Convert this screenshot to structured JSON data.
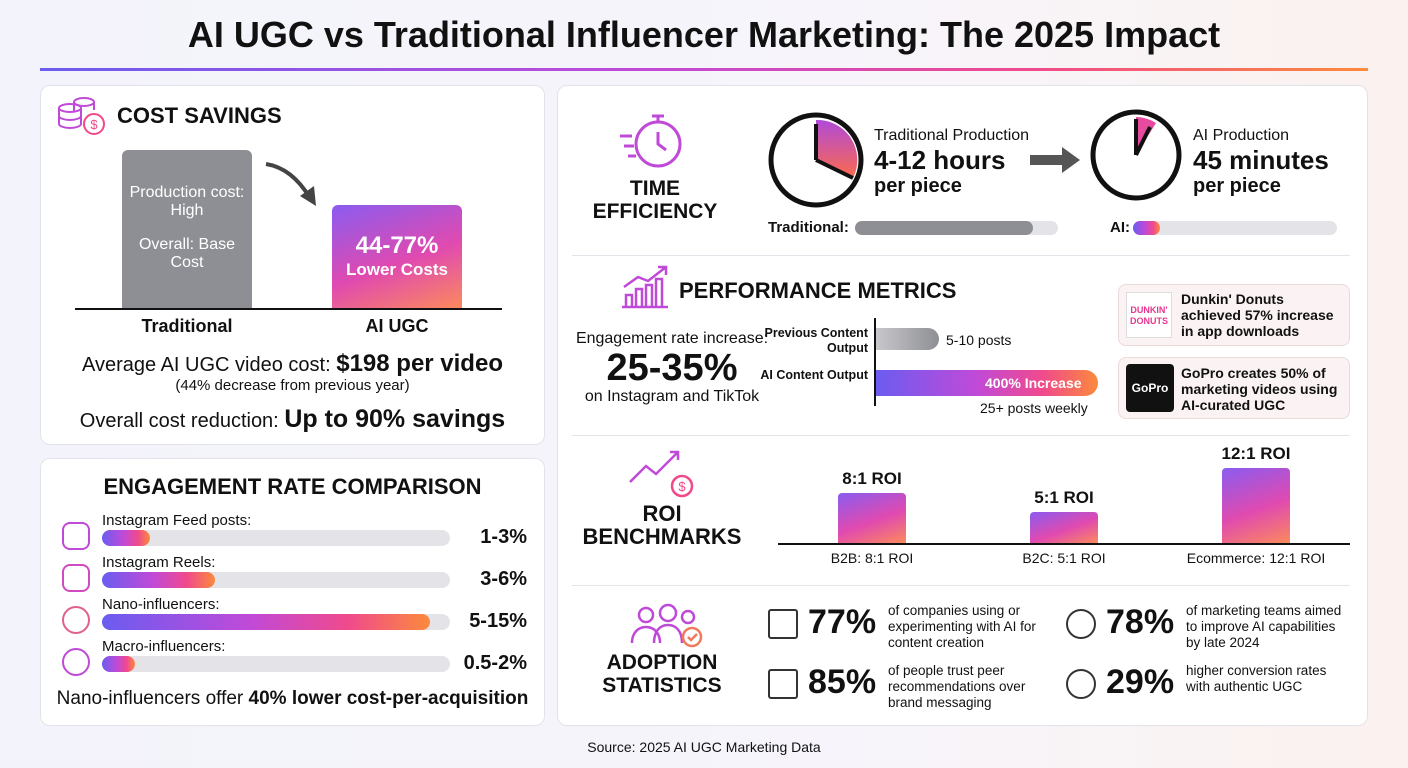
{
  "header": {
    "title": "AI UGC vs Traditional Influencer Marketing: The 2025 Impact"
  },
  "cost_savings": {
    "title": "COST SAVINGS",
    "traditional": {
      "lines": [
        "Production cost: High",
        "Overall: Base Cost"
      ],
      "label": "Traditional"
    },
    "ai": {
      "lines": [
        "44-77%",
        "Lower Costs"
      ],
      "label": "AI UGC"
    },
    "avg_cost": {
      "text": "Average AI UGC video cost:",
      "value": "$198 per video"
    },
    "avg_note": "(44% decrease from previous year)",
    "reduction": {
      "text": "Overall cost reduction:",
      "value": "Up to 90% savings"
    }
  },
  "engagement": {
    "title": "ENGAGEMENT RATE COMPARISON",
    "rows": [
      {
        "label": "Instagram Feed posts:",
        "value": "1-3%"
      },
      {
        "label": "Instagram Reels:",
        "value": "3-6%"
      },
      {
        "label": "Nano-influencers:",
        "value": "5-15%"
      },
      {
        "label": "Macro-influencers:",
        "value": "0.5-2%"
      }
    ],
    "note": {
      "text": "Nano-influencers offer",
      "value": "40% lower cost-per-acquisition"
    }
  },
  "time_efficiency": {
    "title": "TIME EFFICIENCY",
    "traditional": {
      "label": "Traditional Production",
      "value": "4-12 hours",
      "unit": "per piece",
      "bar_label": "Traditional:"
    },
    "ai": {
      "label": "AI Production",
      "value": "45 minutes",
      "unit": "per piece",
      "bar_label": "AI:"
    }
  },
  "performance": {
    "title": "PERFORMANCE METRICS",
    "engagement_label": "Engagement rate increase:",
    "engagement_value": "25-35%",
    "engagement_note": "on Instagram and TikTok",
    "bars": [
      {
        "label": "Previous Content Output",
        "value": "5-10 posts"
      },
      {
        "label": "AI Content Output",
        "value": "400% Increase",
        "note": "25+ posts weekly"
      }
    ],
    "cases": [
      {
        "brand": "DUNKIN' DONUTS",
        "text": "Dunkin' Donuts achieved 57% increase in app downloads"
      },
      {
        "brand": "GoPro",
        "text": "GoPro creates 50% of marketing videos using AI-curated UGC"
      }
    ]
  },
  "roi": {
    "title": "ROI BENCHMARKS",
    "bars": [
      {
        "category": "B2B: 8:1 ROI",
        "value": 8,
        "value_label": "8:1 ROI"
      },
      {
        "category": "B2C: 5:1 ROI",
        "value": 5,
        "value_label": "5:1 ROI"
      },
      {
        "category": "Ecommerce: 12:1 ROI",
        "value": 12,
        "value_label": "12:1 ROI"
      }
    ]
  },
  "adoption": {
    "title": "ADOPTION STATISTICS",
    "stats": [
      {
        "value": "77%",
        "text": "of companies using or experimenting with AI for content creation"
      },
      {
        "value": "78%",
        "text": "of marketing teams aimed to improve AI capabilities by late 2024"
      },
      {
        "value": "85%",
        "text": "of people trust peer recommendations over brand messaging"
      },
      {
        "value": "29%",
        "text": "higher conversion rates with authentic UGC"
      }
    ]
  },
  "footer": {
    "source": "Source: 2025 AI UGC Marketing Data"
  }
}
